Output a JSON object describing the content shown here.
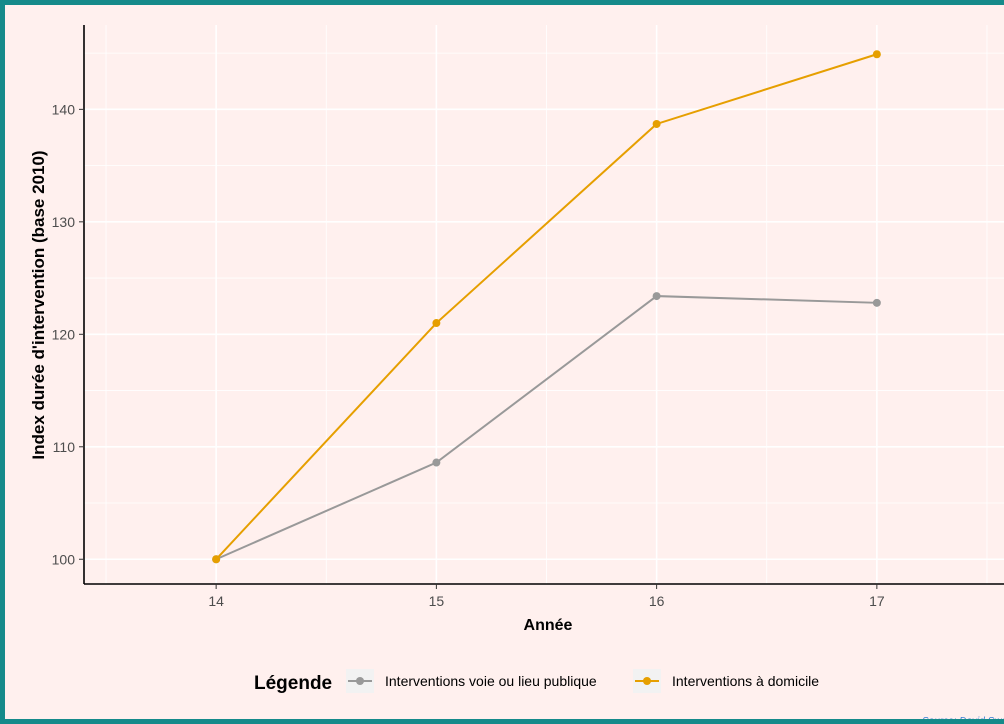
{
  "chart_data": {
    "type": "line",
    "x": [
      14,
      15,
      16,
      17
    ],
    "xlabel": "Année",
    "ylabel": "Index durée d'intervention (base 2010)",
    "xlim": [
      13.4,
      17.6
    ],
    "ylim": [
      97.8,
      147.5
    ],
    "yticks": [
      100,
      110,
      120,
      130,
      140
    ],
    "xticks": [
      14,
      15,
      16,
      17
    ],
    "grid": true,
    "legend_title": "Légende",
    "legend_position": "bottom",
    "series": [
      {
        "name": "Interventions voie ou lieu publique",
        "color": "#999999",
        "values": [
          100,
          108.6,
          123.4,
          122.8
        ]
      },
      {
        "name": "Interventions à domicile",
        "color": "#E69F00",
        "values": [
          100,
          121,
          138.7,
          144.9
        ]
      }
    ],
    "source": "Source: David Swan"
  }
}
